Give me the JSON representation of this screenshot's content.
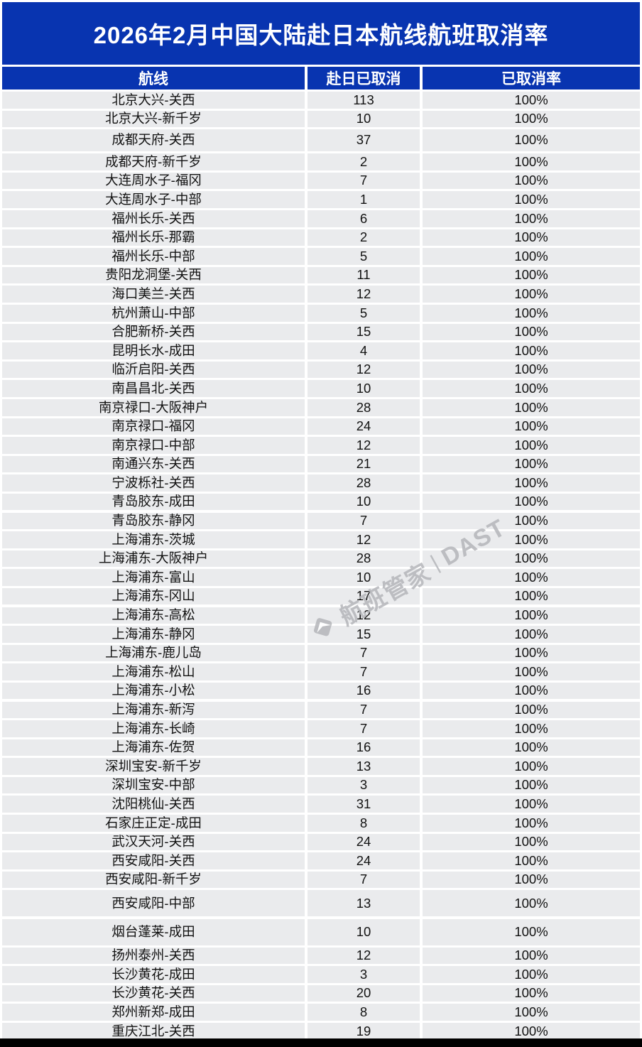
{
  "chart_data": {
    "type": "table",
    "title": "2026年2月中国大陆赴日本航线航班取消率",
    "columns": [
      "航线",
      "赴日已取消",
      "已取消率"
    ],
    "rows": [
      [
        "北京大兴-关西",
        "113",
        "100%"
      ],
      [
        "北京大兴-新千岁",
        "10",
        "100%"
      ],
      [
        "成都天府-关西",
        "37",
        "100%"
      ],
      [
        "成都天府-新千岁",
        "2",
        "100%"
      ],
      [
        "大连周水子-福冈",
        "7",
        "100%"
      ],
      [
        "大连周水子-中部",
        "1",
        "100%"
      ],
      [
        "福州长乐-关西",
        "6",
        "100%"
      ],
      [
        "福州长乐-那霸",
        "2",
        "100%"
      ],
      [
        "福州长乐-中部",
        "5",
        "100%"
      ],
      [
        "贵阳龙洞堡-关西",
        "11",
        "100%"
      ],
      [
        "海口美兰-关西",
        "12",
        "100%"
      ],
      [
        "杭州萧山-中部",
        "5",
        "100%"
      ],
      [
        "合肥新桥-关西",
        "15",
        "100%"
      ],
      [
        "昆明长水-成田",
        "4",
        "100%"
      ],
      [
        "临沂启阳-关西",
        "12",
        "100%"
      ],
      [
        "南昌昌北-关西",
        "10",
        "100%"
      ],
      [
        "南京禄口-大阪神户",
        "28",
        "100%"
      ],
      [
        "南京禄口-福冈",
        "24",
        "100%"
      ],
      [
        "南京禄口-中部",
        "12",
        "100%"
      ],
      [
        "南通兴东-关西",
        "21",
        "100%"
      ],
      [
        "宁波栎社-关西",
        "28",
        "100%"
      ],
      [
        "青岛胶东-成田",
        "10",
        "100%"
      ],
      [
        "青岛胶东-静冈",
        "7",
        "100%"
      ],
      [
        "上海浦东-茨城",
        "12",
        "100%"
      ],
      [
        "上海浦东-大阪神户",
        "28",
        "100%"
      ],
      [
        "上海浦东-富山",
        "10",
        "100%"
      ],
      [
        "上海浦东-冈山",
        "17",
        "100%"
      ],
      [
        "上海浦东-高松",
        "12",
        "100%"
      ],
      [
        "上海浦东-静冈",
        "15",
        "100%"
      ],
      [
        "上海浦东-鹿儿岛",
        "7",
        "100%"
      ],
      [
        "上海浦东-松山",
        "7",
        "100%"
      ],
      [
        "上海浦东-小松",
        "16",
        "100%"
      ],
      [
        "上海浦东-新泻",
        "7",
        "100%"
      ],
      [
        "上海浦东-长崎",
        "7",
        "100%"
      ],
      [
        "上海浦东-佐贺",
        "16",
        "100%"
      ],
      [
        "深圳宝安-新千岁",
        "13",
        "100%"
      ],
      [
        "深圳宝安-中部",
        "3",
        "100%"
      ],
      [
        "沈阳桃仙-关西",
        "31",
        "100%"
      ],
      [
        "石家庄正定-成田",
        "8",
        "100%"
      ],
      [
        "武汉天河-关西",
        "24",
        "100%"
      ],
      [
        "西安咸阳-关西",
        "24",
        "100%"
      ],
      [
        "西安咸阳-新千岁",
        "7",
        "100%"
      ],
      [
        "西安咸阳-中部",
        "13",
        "100%"
      ],
      [
        "烟台蓬莱-成田",
        "10",
        "100%"
      ],
      [
        "扬州泰州-关西",
        "12",
        "100%"
      ],
      [
        "长沙黄花-成田",
        "3",
        "100%"
      ],
      [
        "长沙黄花-关西",
        "20",
        "100%"
      ],
      [
        "郑州新郑-成田",
        "8",
        "100%"
      ],
      [
        "重庆江北-关西",
        "19",
        "100%"
      ]
    ]
  },
  "watermark": {
    "brand": "航班管家",
    "separator": "|",
    "suffix": "DAST"
  },
  "colors": {
    "primary_blue": "#0834b0",
    "row_bg": "#eaebed",
    "row_text": "#121212",
    "header_text": "#ffffff",
    "footer_bar": "#000000",
    "watermark_gray": "#b4b6ba"
  }
}
